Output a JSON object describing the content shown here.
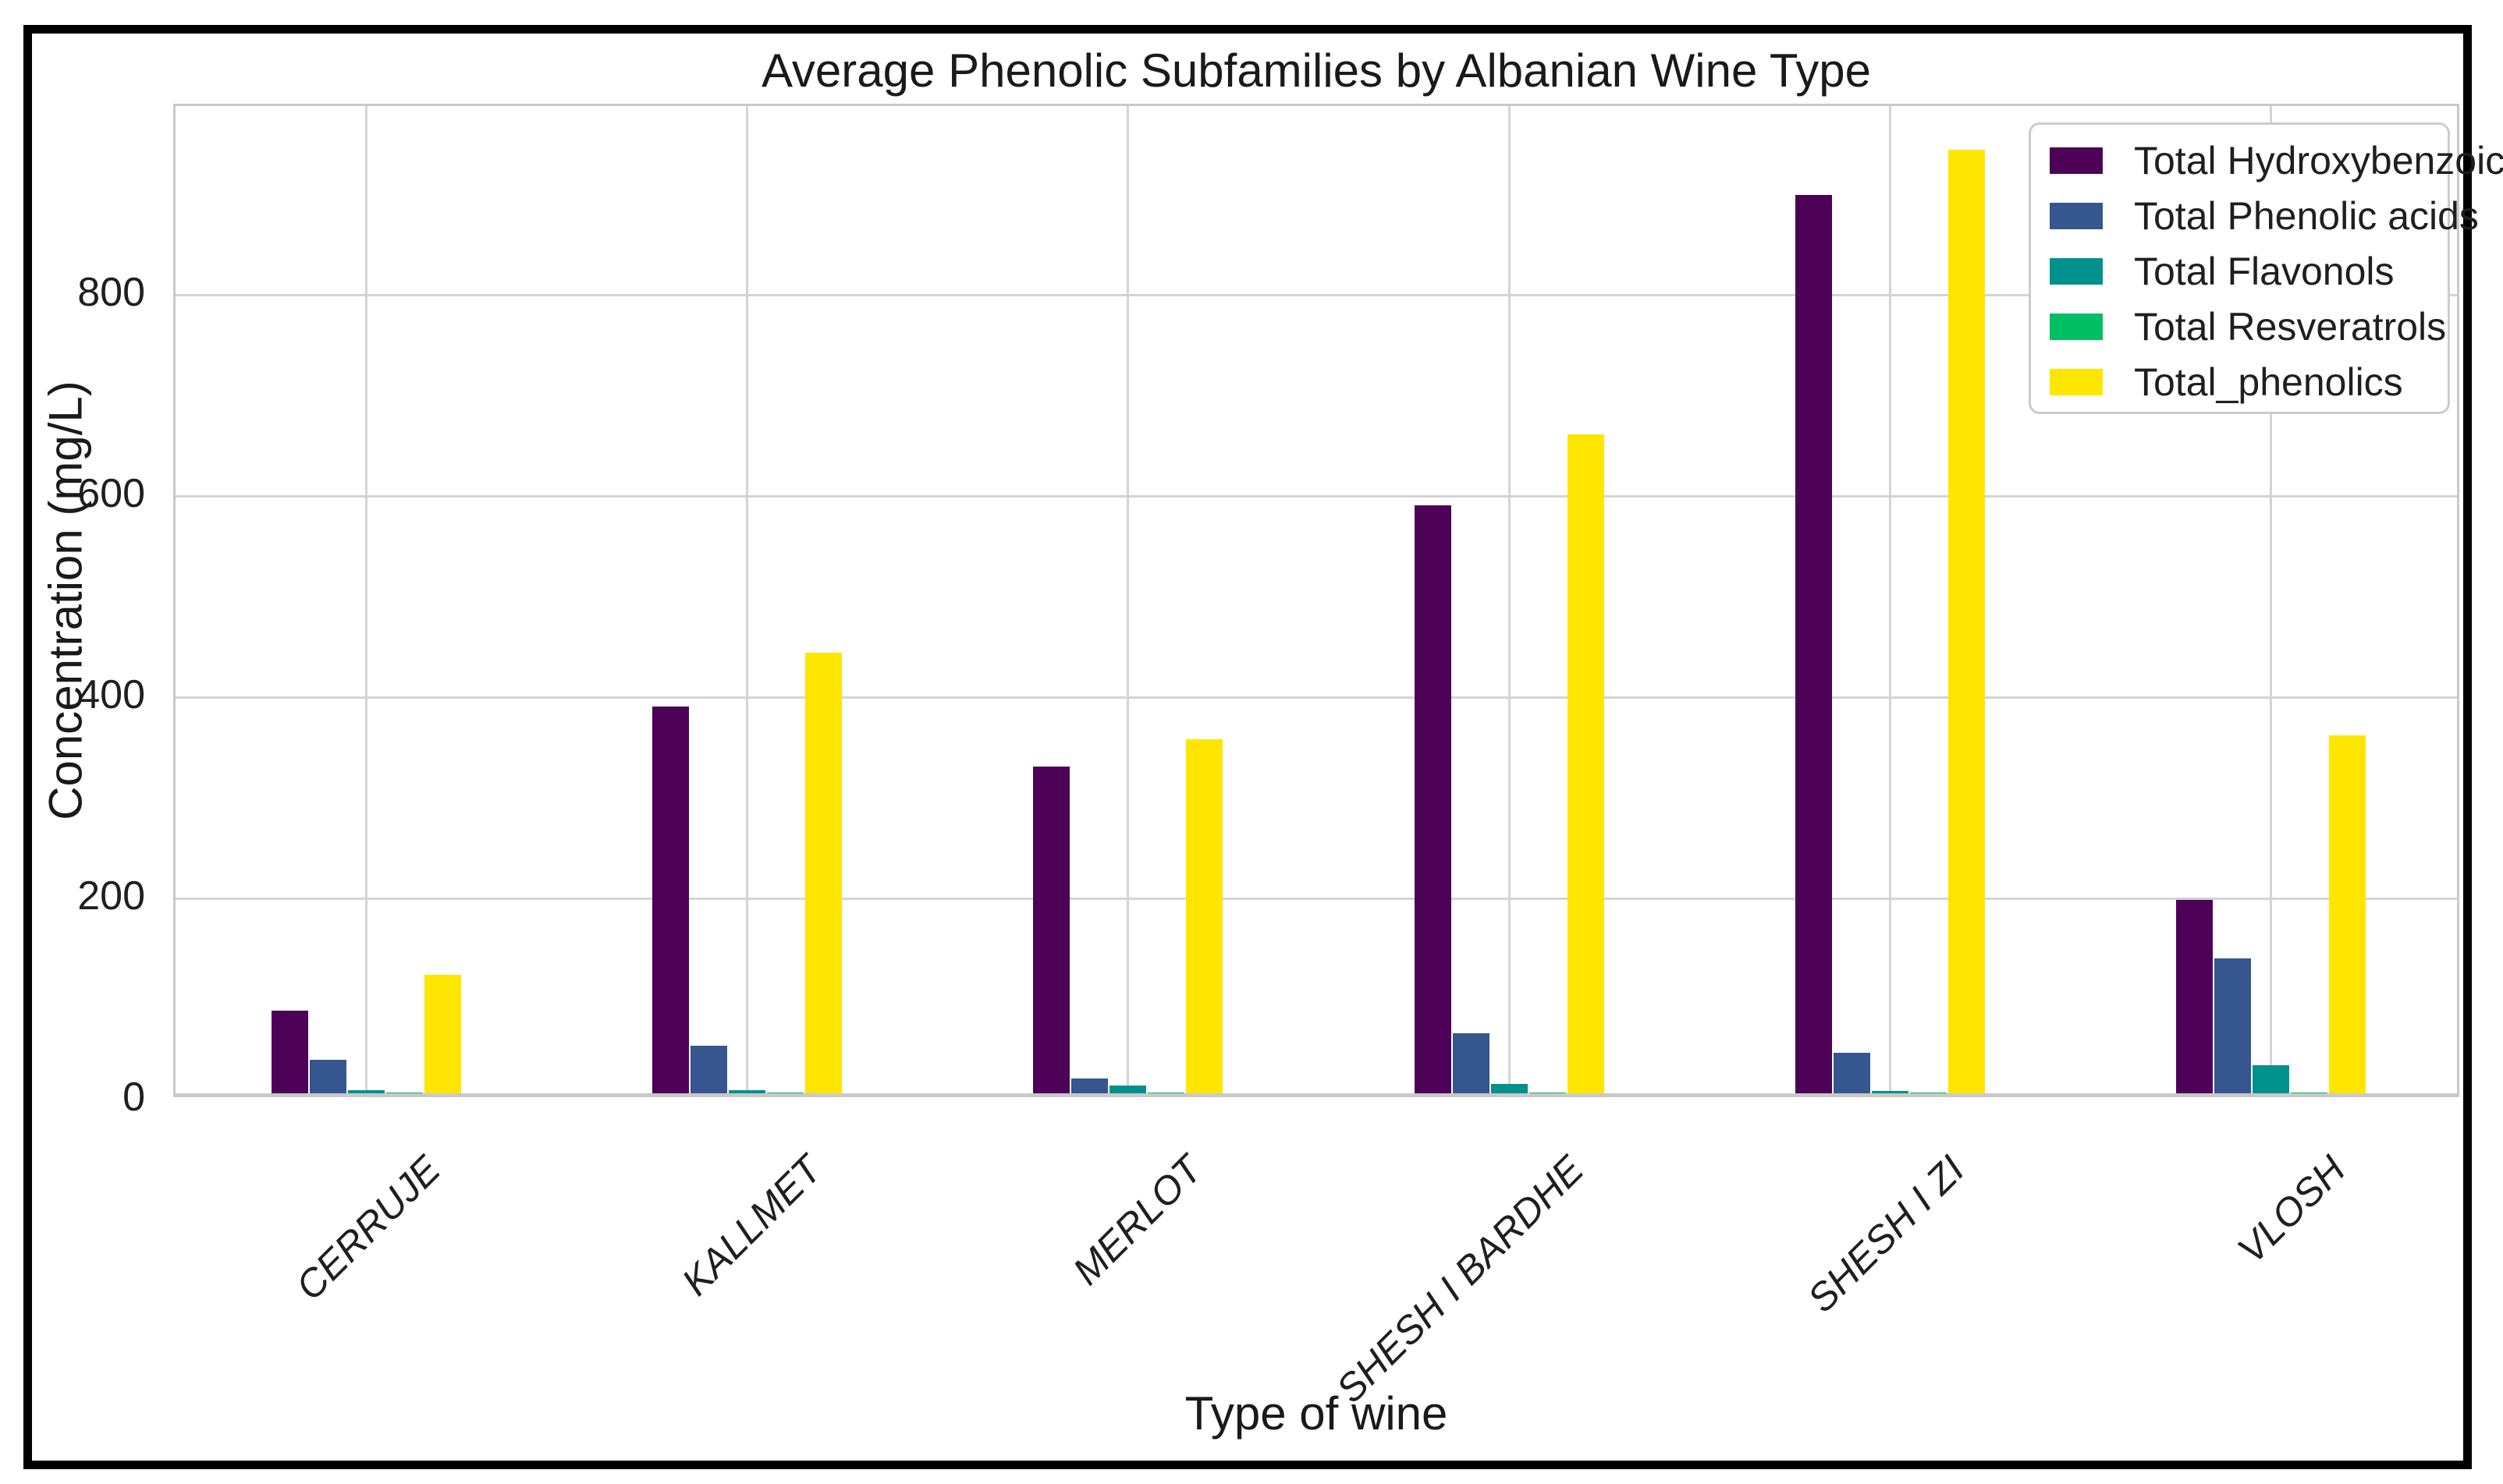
{
  "figure": {
    "title": "Average Phenolic Subfamilies by Albanian Wine Type",
    "xlabel": "Type of wine",
    "ylabel": "Concentration (mg/L)"
  },
  "chart_data": {
    "type": "bar",
    "title": "Average Phenolic Subfamilies by Albanian Wine Type",
    "xlabel": "Type of wine",
    "ylabel": "Concentration (mg/L)",
    "categories": [
      "CERRUJE",
      "KALLMET",
      "MERLOT",
      "SHESH I BARDHE",
      "SHESH I ZI",
      "VLOSH"
    ],
    "series": [
      {
        "name": "Total Hydroxybenzoic",
        "color": "#4d0157",
        "values": [
          82,
          385,
          325,
          585,
          893,
          192
        ]
      },
      {
        "name": "Total Phenolic acids",
        "color": "#35568e",
        "values": [
          33,
          47,
          15,
          60,
          40,
          134
        ]
      },
      {
        "name": "Total Flavonols",
        "color": "#00918c",
        "values": [
          3,
          3,
          8,
          9,
          2,
          28
        ]
      },
      {
        "name": "Total Resveratrols",
        "color": "#00bf62",
        "values": [
          0.5,
          0.5,
          0.5,
          0.5,
          0.5,
          0.5
        ]
      },
      {
        "name": "Total_phenolics",
        "color": "#fee600",
        "values": [
          118,
          438,
          352,
          655,
          938,
          356
        ]
      }
    ],
    "ylim": [
      0,
      988
    ],
    "yticks": [
      0,
      200,
      400,
      600,
      800
    ],
    "grid": true,
    "legend_position": "upper right",
    "x_tick_style": "italic, rotated 45deg"
  }
}
